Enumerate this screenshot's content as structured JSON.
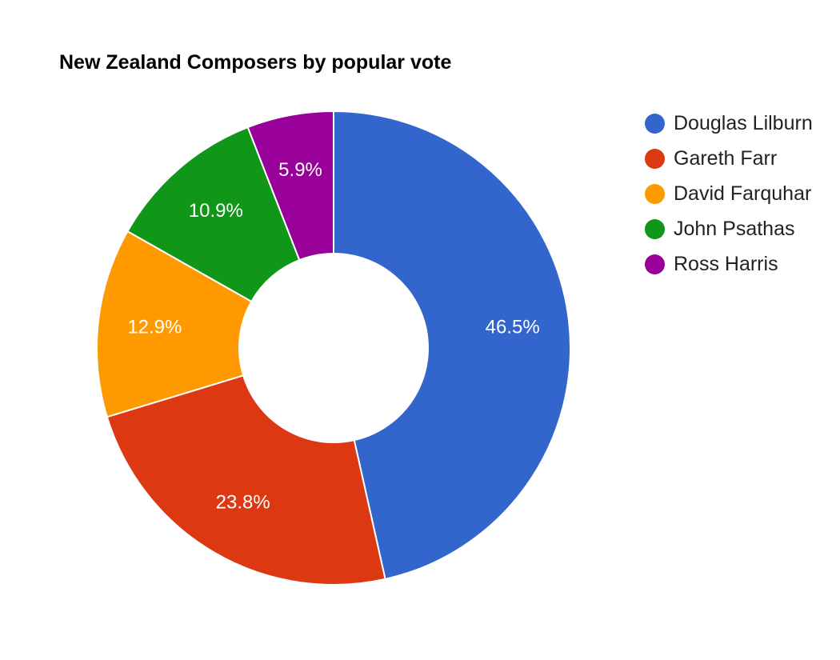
{
  "chart_data": {
    "type": "pie",
    "title": "New Zealand Composers by popular vote",
    "hole": true,
    "legend_position": "right",
    "slices": [
      {
        "label": "Douglas Lilburn",
        "value": 46.5,
        "display": "46.5%",
        "color": "#3366cc"
      },
      {
        "label": "Gareth Farr",
        "value": 23.8,
        "display": "23.8%",
        "color": "#dc3912"
      },
      {
        "label": "David Farquhar",
        "value": 12.9,
        "display": "12.9%",
        "color": "#ff9900"
      },
      {
        "label": "John Psathas",
        "value": 10.9,
        "display": "10.9%",
        "color": "#109618"
      },
      {
        "label": "Ross Harris",
        "value": 5.9,
        "display": "5.9%",
        "color": "#990099"
      }
    ]
  }
}
